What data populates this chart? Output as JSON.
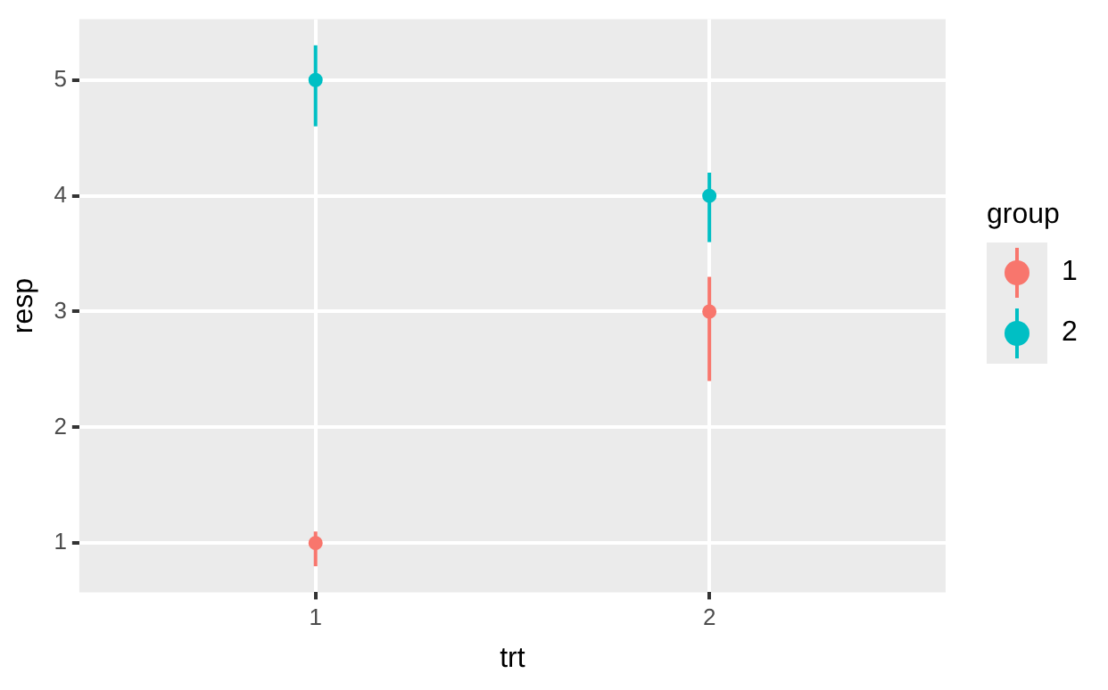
{
  "chart_data": {
    "type": "scatter",
    "xlabel": "trt",
    "ylabel": "resp",
    "legend_title": "group",
    "categories": [
      "1",
      "2"
    ],
    "series": [
      {
        "name": "1",
        "color": "#f8766d",
        "values": [
          1,
          3
        ],
        "errors": [
          [
            0.8,
            1.1
          ],
          [
            2.4,
            3.3
          ]
        ]
      },
      {
        "name": "2",
        "color": "#00bfc4",
        "values": [
          5,
          4
        ],
        "errors": [
          [
            4.6,
            5.3
          ],
          [
            3.6,
            4.2
          ]
        ]
      }
    ],
    "ylim": [
      0.575,
      5.525
    ],
    "yticks": [
      1,
      2,
      3,
      4,
      5
    ],
    "grid": true,
    "legend": "right",
    "marker": "circle"
  }
}
